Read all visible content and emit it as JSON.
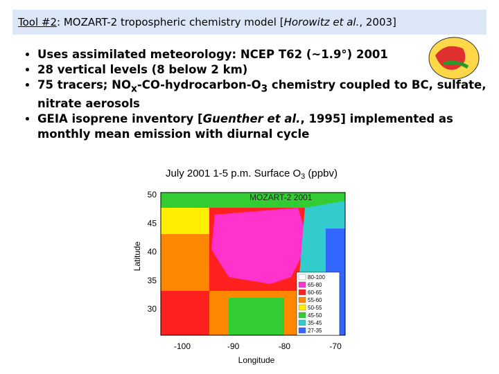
{
  "header": {
    "label": "Tool #2",
    "title": ": MOZART-2 tropospheric chemistry model [",
    "citation": "Horowitz et al.",
    "year": ", 2003]"
  },
  "bullets": [
    {
      "text": "Uses assimilated meteorology: NCEP T62 (~1.9°) 2001"
    },
    {
      "text": "28 vertical levels (8 below 2 km)"
    },
    {
      "parts": [
        "75 tracers; NO",
        "x",
        "-CO-hydrocarbon-O",
        "3",
        " chemistry coupled to BC, sulfate, nitrate aerosols"
      ]
    },
    {
      "parts": [
        "GEIA isoprene inventory [",
        "Guenther et al.",
        ", 1995] implemented as monthly mean emission with diurnal cycle"
      ]
    }
  ],
  "figure": {
    "title": [
      "July 2001 1-5 p.m. Surface O",
      "3",
      " (ppbv)"
    ],
    "model_label": "MOZART-2 2001",
    "y_label": "Latitude",
    "x_label": "Longitude",
    "yticks": [
      "50",
      "45",
      "40",
      "35",
      "30"
    ],
    "xticks": [
      "-100",
      "-90",
      "-80",
      "-70"
    ],
    "legend": [
      {
        "label": "80-100",
        "color": "#ffffff"
      },
      {
        "label": "65-80",
        "color": "#ff33cc"
      },
      {
        "label": "60-65",
        "color": "#ff2020"
      },
      {
        "label": "55-60",
        "color": "#ff8800"
      },
      {
        "label": "50-55",
        "color": "#ffee00"
      },
      {
        "label": "45-50",
        "color": "#33cc33"
      },
      {
        "label": "35-45",
        "color": "#33cccc"
      },
      {
        "label": "27-35",
        "color": "#3366ff"
      }
    ]
  }
}
